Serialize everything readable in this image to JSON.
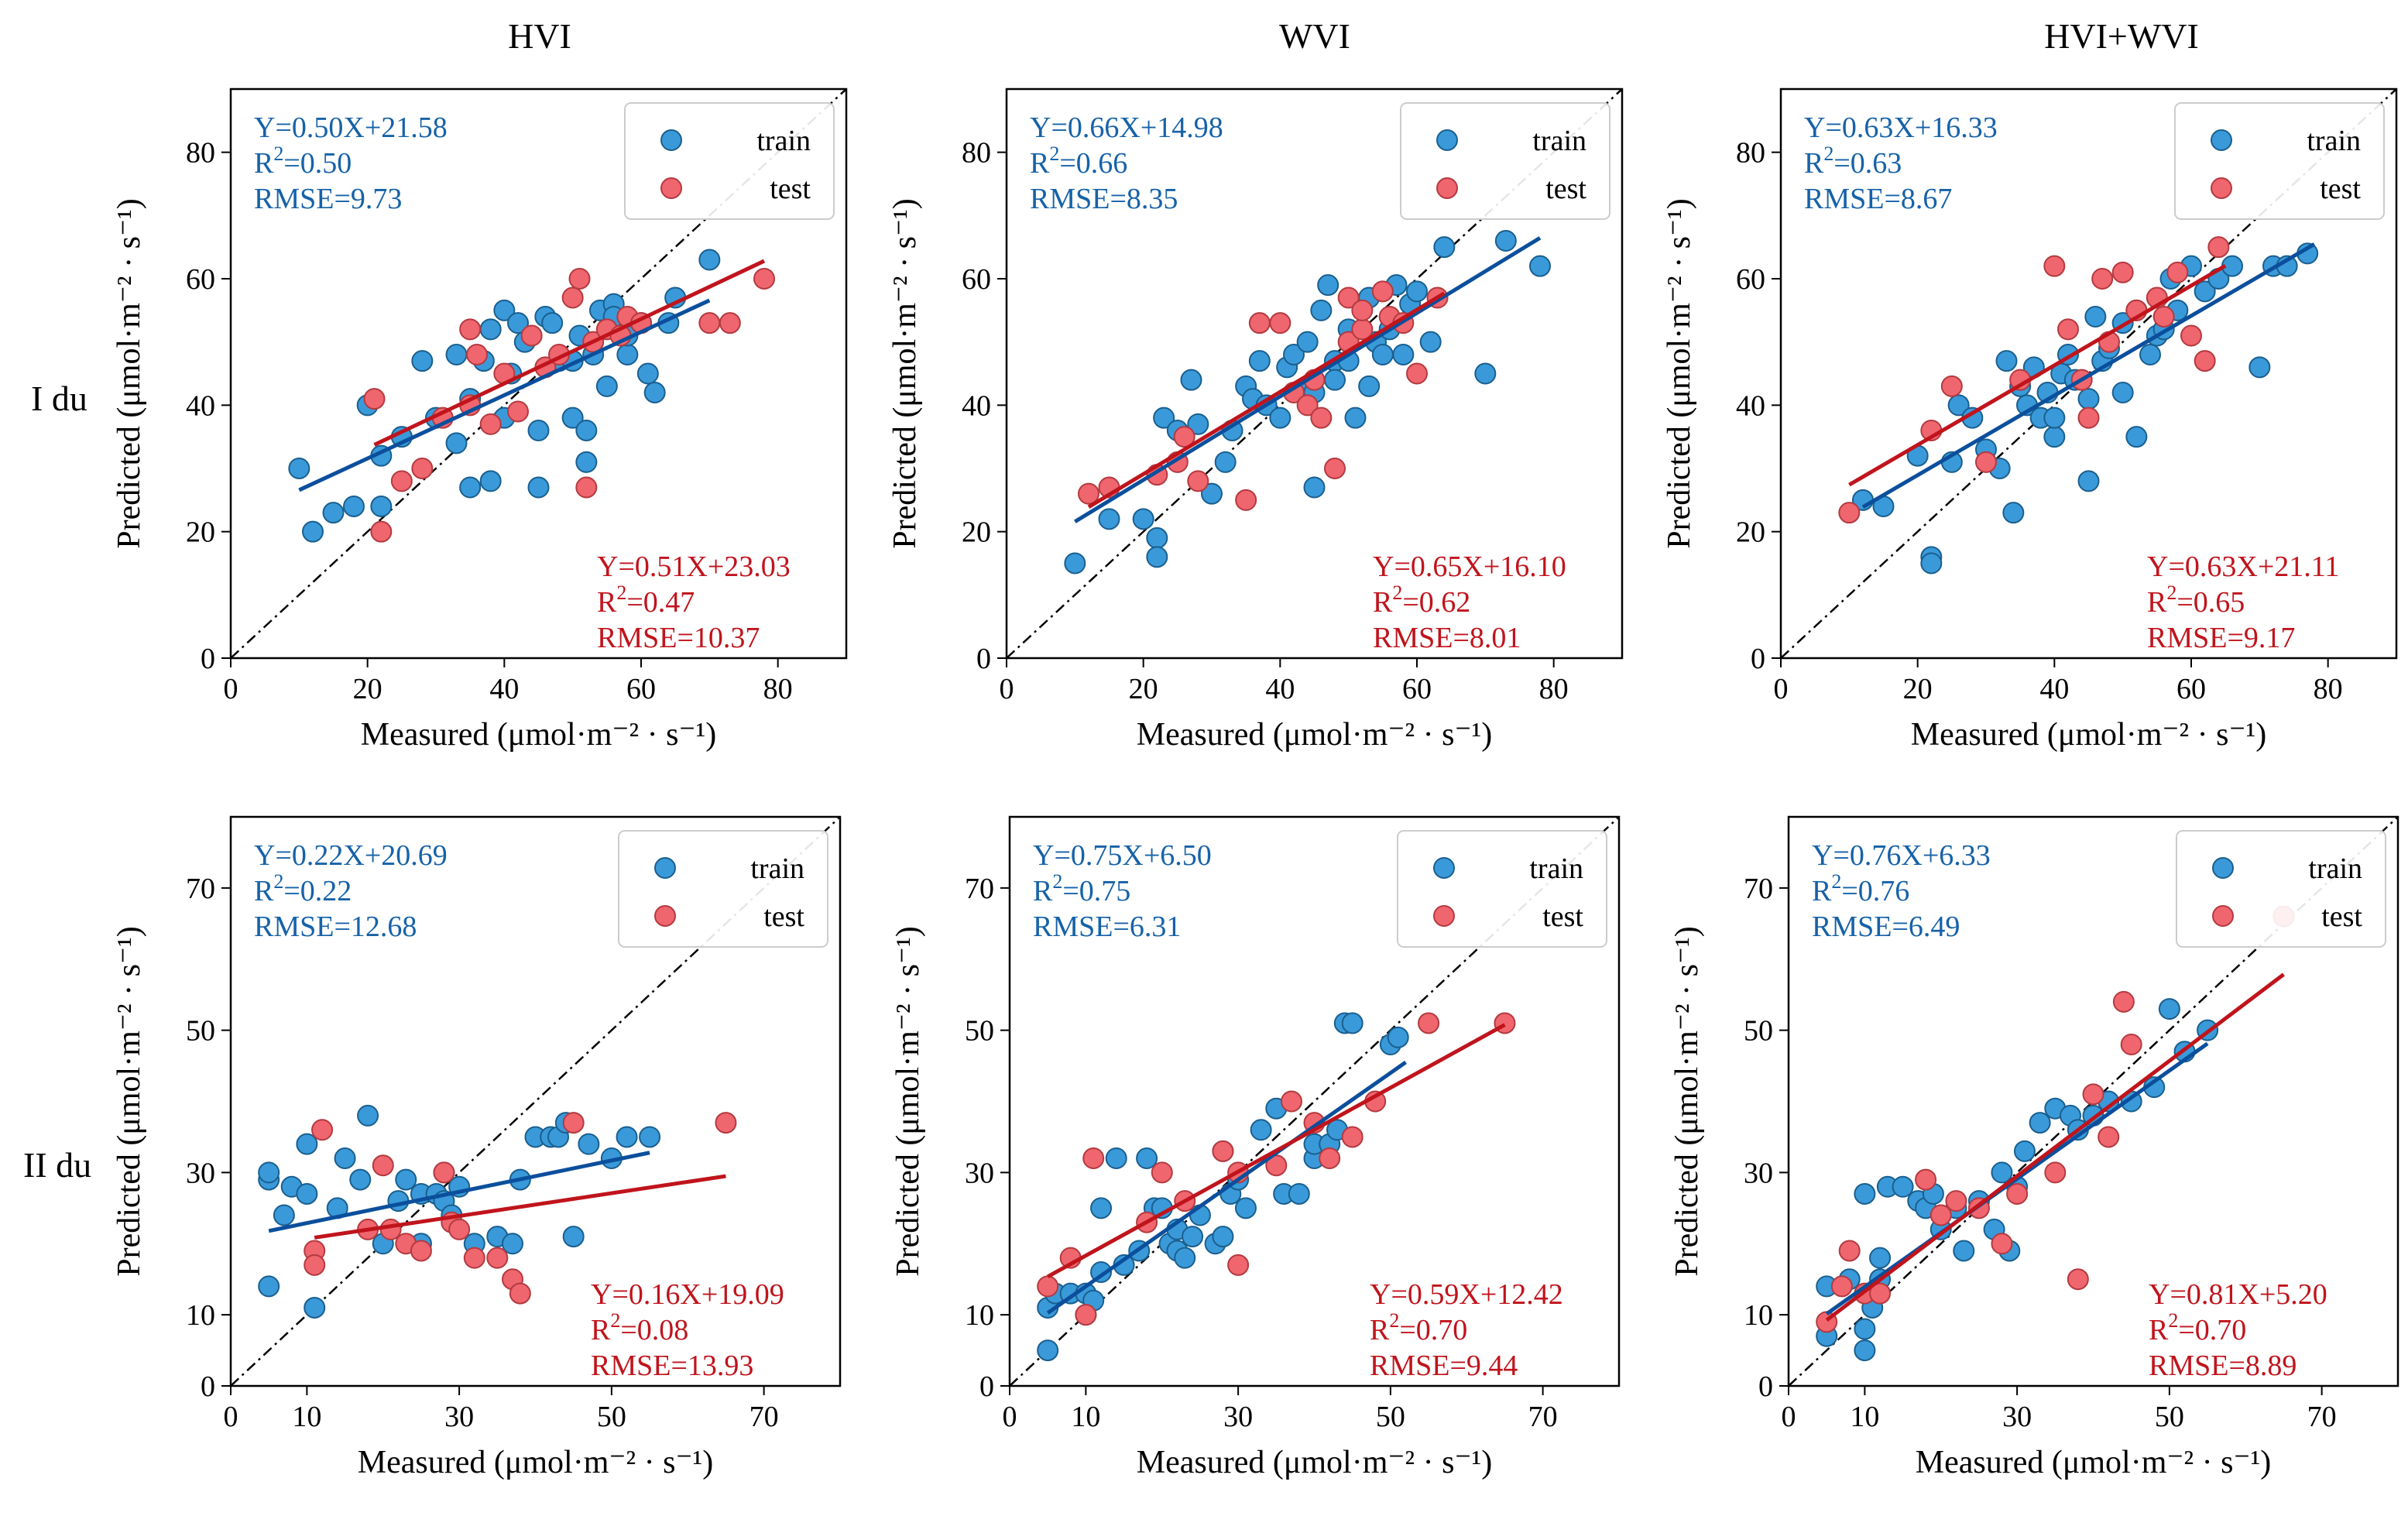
{
  "figure": {
    "row_labels": [
      "I du",
      "II du"
    ],
    "col_titles": [
      "HVI",
      "WVI",
      "HVI+WVI"
    ],
    "xlabel": "Measured (μmol·m⁻² · s⁻¹)",
    "ylabel": "Predicted (μmol·m⁻² · s⁻¹)",
    "legend": {
      "train": "train",
      "test": "test"
    },
    "colors": {
      "train_fill": "#3a9ad9",
      "train_edge": "#1a5f8f",
      "train_line": "#0b4f9c",
      "train_text": "#1662a8",
      "test_fill": "#f0666e",
      "test_edge": "#b43a40",
      "test_line": "#c0141c",
      "test_text": "#c0141c"
    }
  },
  "chart_data": [
    {
      "type": "scatter",
      "title": "HVI",
      "row": "I du",
      "xlim": [
        0,
        90
      ],
      "ylim": [
        0,
        90
      ],
      "xticks": [
        0,
        20,
        40,
        60,
        80
      ],
      "yticks": [
        0,
        20,
        40,
        60,
        80
      ],
      "train_fit": {
        "eq": "Y=0.50X+21.58",
        "r2": "0.50",
        "rmse": "RMSE=9.73",
        "slope": 0.5,
        "intercept": 21.58,
        "x_range": [
          10,
          70
        ]
      },
      "test_fit": {
        "eq": "Y=0.51X+23.03",
        "r2": "0.47",
        "rmse": "RMSE=10.37",
        "slope": 0.51,
        "intercept": 23.03,
        "x_range": [
          21,
          78
        ]
      },
      "series": [
        {
          "name": "train",
          "x": [
            10,
            12,
            15,
            18,
            20,
            22,
            22,
            25,
            28,
            30,
            33,
            33,
            35,
            35,
            37,
            38,
            38,
            40,
            40,
            41,
            42,
            43,
            45,
            45,
            46,
            47,
            48,
            50,
            50,
            51,
            52,
            52,
            53,
            54,
            55,
            56,
            56,
            58,
            58,
            60,
            61,
            62,
            64,
            65,
            70
          ],
          "y": [
            30,
            20,
            23,
            24,
            40,
            24,
            32,
            35,
            47,
            38,
            34,
            48,
            27,
            41,
            47,
            28,
            52,
            38,
            55,
            45,
            53,
            50,
            27,
            36,
            54,
            53,
            47,
            47,
            38,
            51,
            31,
            36,
            48,
            55,
            43,
            56,
            54,
            48,
            51,
            53,
            45,
            42,
            53,
            57,
            63
          ]
        },
        {
          "name": "test",
          "x": [
            21,
            22,
            25,
            28,
            31,
            35,
            35,
            36,
            38,
            40,
            42,
            44,
            46,
            48,
            50,
            51,
            52,
            53,
            55,
            57,
            58,
            60,
            70,
            73,
            78
          ],
          "y": [
            41,
            20,
            28,
            30,
            38,
            52,
            40,
            48,
            37,
            45,
            39,
            51,
            46,
            48,
            57,
            60,
            27,
            50,
            52,
            51,
            54,
            53,
            53,
            53,
            60
          ]
        }
      ]
    },
    {
      "type": "scatter",
      "title": "WVI",
      "row": "I du",
      "xlim": [
        0,
        90
      ],
      "ylim": [
        0,
        90
      ],
      "xticks": [
        0,
        20,
        40,
        60,
        80
      ],
      "yticks": [
        0,
        20,
        40,
        60,
        80
      ],
      "train_fit": {
        "eq": "Y=0.66X+14.98",
        "r2": "0.66",
        "rmse": "RMSE=8.35",
        "slope": 0.66,
        "intercept": 14.98,
        "x_range": [
          10,
          78
        ]
      },
      "test_fit": {
        "eq": "Y=0.65X+16.10",
        "r2": "0.62",
        "rmse": "RMSE=8.01",
        "slope": 0.65,
        "intercept": 16.1,
        "x_range": [
          12,
          64
        ]
      },
      "series": [
        {
          "name": "train",
          "x": [
            10,
            15,
            20,
            22,
            22,
            23,
            25,
            27,
            28,
            30,
            32,
            33,
            35,
            36,
            37,
            38,
            40,
            41,
            42,
            43,
            44,
            45,
            45,
            46,
            47,
            48,
            48,
            50,
            50,
            51,
            52,
            53,
            53,
            54,
            55,
            56,
            57,
            58,
            59,
            60,
            62,
            64,
            70,
            73,
            78
          ],
          "y": [
            15,
            22,
            22,
            19,
            16,
            38,
            36,
            44,
            37,
            26,
            31,
            36,
            43,
            41,
            47,
            40,
            38,
            46,
            48,
            42,
            50,
            27,
            42,
            55,
            59,
            47,
            44,
            52,
            47,
            38,
            56,
            43,
            57,
            50,
            48,
            52,
            59,
            48,
            56,
            58,
            50,
            65,
            45,
            66,
            62
          ]
        },
        {
          "name": "test",
          "x": [
            12,
            15,
            22,
            25,
            26,
            28,
            35,
            37,
            40,
            42,
            44,
            45,
            46,
            48,
            50,
            50,
            52,
            52,
            55,
            56,
            58,
            60,
            63
          ],
          "y": [
            26,
            27,
            29,
            31,
            35,
            28,
            25,
            53,
            53,
            42,
            40,
            44,
            38,
            30,
            57,
            50,
            52,
            55,
            58,
            54,
            53,
            45,
            57
          ]
        }
      ]
    },
    {
      "type": "scatter",
      "title": "HVI+WVI",
      "row": "I du",
      "xlim": [
        0,
        90
      ],
      "ylim": [
        0,
        90
      ],
      "xticks": [
        0,
        20,
        40,
        60,
        80
      ],
      "yticks": [
        0,
        20,
        40,
        60,
        80
      ],
      "train_fit": {
        "eq": "Y=0.63X+16.33",
        "r2": "0.63",
        "rmse": "RMSE=8.67",
        "slope": 0.63,
        "intercept": 16.33,
        "x_range": [
          12,
          78
        ]
      },
      "test_fit": {
        "eq": "Y=0.63X+21.11",
        "r2": "0.65",
        "rmse": "RMSE=9.17",
        "slope": 0.63,
        "intercept": 21.11,
        "x_range": [
          10,
          65
        ]
      },
      "series": [
        {
          "name": "train",
          "x": [
            12,
            15,
            20,
            22,
            22,
            25,
            26,
            28,
            30,
            32,
            33,
            34,
            35,
            36,
            37,
            38,
            39,
            40,
            40,
            41,
            42,
            43,
            45,
            45,
            46,
            47,
            48,
            50,
            50,
            52,
            52,
            54,
            55,
            56,
            57,
            58,
            60,
            62,
            64,
            66,
            70,
            72,
            74,
            77
          ],
          "y": [
            25,
            24,
            32,
            16,
            15,
            31,
            40,
            38,
            33,
            30,
            47,
            23,
            43,
            40,
            46,
            38,
            42,
            35,
            38,
            45,
            48,
            44,
            28,
            41,
            54,
            47,
            49,
            53,
            42,
            55,
            35,
            48,
            51,
            52,
            60,
            55,
            62,
            58,
            60,
            62,
            46,
            62,
            62,
            64
          ]
        },
        {
          "name": "test",
          "x": [
            10,
            22,
            25,
            30,
            35,
            40,
            42,
            44,
            45,
            47,
            48,
            50,
            52,
            55,
            56,
            58,
            60,
            62,
            64
          ],
          "y": [
            23,
            36,
            43,
            31,
            44,
            62,
            52,
            44,
            38,
            60,
            50,
            61,
            55,
            57,
            54,
            61,
            51,
            47,
            65
          ]
        }
      ]
    },
    {
      "type": "scatter",
      "title": "HVI",
      "row": "II du",
      "xlim": [
        0,
        80
      ],
      "ylim": [
        0,
        80
      ],
      "xticks": [
        0,
        10,
        30,
        50,
        70
      ],
      "yticks": [
        0,
        10,
        30,
        50,
        70
      ],
      "train_fit": {
        "eq": "Y=0.22X+20.69",
        "r2": "0.22",
        "rmse": "RMSE=12.68",
        "slope": 0.22,
        "intercept": 20.69,
        "x_range": [
          5,
          55
        ]
      },
      "test_fit": {
        "eq": "Y=0.16X+19.09",
        "r2": "0.08",
        "rmse": "RMSE=13.93",
        "slope": 0.16,
        "intercept": 19.09,
        "x_range": [
          11,
          65
        ]
      },
      "series": [
        {
          "name": "train",
          "x": [
            5,
            5,
            5,
            7,
            8,
            10,
            10,
            11,
            14,
            15,
            17,
            18,
            20,
            22,
            23,
            25,
            25,
            27,
            28,
            28,
            29,
            30,
            32,
            35,
            37,
            38,
            40,
            42,
            43,
            44,
            45,
            47,
            50,
            52,
            55
          ],
          "y": [
            29,
            30,
            14,
            24,
            28,
            27,
            34,
            11,
            25,
            32,
            29,
            38,
            20,
            26,
            29,
            27,
            20,
            27,
            26,
            30,
            24,
            28,
            20,
            21,
            20,
            29,
            35,
            35,
            35,
            37,
            21,
            34,
            32,
            35,
            35
          ]
        },
        {
          "name": "test",
          "x": [
            11,
            11,
            12,
            18,
            20,
            21,
            23,
            25,
            28,
            29,
            30,
            32,
            35,
            37,
            38,
            45,
            65
          ],
          "y": [
            19,
            17,
            36,
            22,
            31,
            22,
            20,
            19,
            30,
            23,
            22,
            18,
            18,
            15,
            13,
            37,
            37
          ]
        }
      ]
    },
    {
      "type": "scatter",
      "title": "WVI",
      "row": "II du",
      "xlim": [
        0,
        80
      ],
      "ylim": [
        0,
        80
      ],
      "xticks": [
        0,
        10,
        30,
        50,
        70
      ],
      "yticks": [
        0,
        10,
        30,
        50,
        70
      ],
      "train_fit": {
        "eq": "Y=0.75X+6.50",
        "r2": "0.75",
        "rmse": "RMSE=6.31",
        "slope": 0.75,
        "intercept": 6.5,
        "x_range": [
          5,
          52
        ]
      },
      "test_fit": {
        "eq": "Y=0.59X+12.42",
        "r2": "0.70",
        "rmse": "RMSE=9.44",
        "slope": 0.59,
        "intercept": 12.42,
        "x_range": [
          5,
          65
        ]
      },
      "series": [
        {
          "name": "train",
          "x": [
            5,
            5,
            6,
            8,
            10,
            10,
            11,
            12,
            12,
            14,
            15,
            17,
            18,
            19,
            20,
            21,
            22,
            22,
            23,
            24,
            25,
            27,
            28,
            28,
            29,
            30,
            31,
            33,
            35,
            36,
            38,
            40,
            40,
            42,
            43,
            44,
            45,
            50,
            51
          ],
          "y": [
            11,
            5,
            13,
            13,
            13,
            10,
            12,
            16,
            25,
            32,
            17,
            19,
            32,
            25,
            25,
            20,
            22,
            19,
            18,
            21,
            24,
            20,
            21,
            33,
            27,
            29,
            25,
            36,
            39,
            27,
            27,
            32,
            34,
            34,
            36,
            51,
            51,
            48,
            49
          ]
        },
        {
          "name": "test",
          "x": [
            5,
            8,
            10,
            11,
            18,
            20,
            23,
            28,
            30,
            30,
            35,
            37,
            40,
            42,
            45,
            48,
            55,
            65
          ],
          "y": [
            14,
            18,
            10,
            32,
            23,
            30,
            26,
            33,
            30,
            17,
            31,
            40,
            37,
            32,
            35,
            40,
            51,
            51
          ]
        }
      ]
    },
    {
      "type": "scatter",
      "title": "HVI+WVI",
      "row": "II du",
      "xlim": [
        0,
        80
      ],
      "ylim": [
        0,
        80
      ],
      "xticks": [
        0,
        10,
        30,
        50,
        70
      ],
      "yticks": [
        0,
        10,
        30,
        50,
        70
      ],
      "train_fit": {
        "eq": "Y=0.76X+6.33",
        "r2": "0.76",
        "rmse": "RMSE=6.49",
        "slope": 0.76,
        "intercept": 6.33,
        "x_range": [
          5,
          55
        ]
      },
      "test_fit": {
        "eq": "Y=0.81X+5.20",
        "r2": "0.70",
        "rmse": "RMSE=8.89",
        "slope": 0.81,
        "intercept": 5.2,
        "x_range": [
          5,
          65
        ]
      },
      "series": [
        {
          "name": "train",
          "x": [
            5,
            5,
            8,
            10,
            10,
            10,
            11,
            12,
            12,
            13,
            15,
            17,
            18,
            19,
            20,
            22,
            23,
            25,
            27,
            28,
            29,
            30,
            31,
            33,
            35,
            37,
            38,
            40,
            42,
            45,
            48,
            50,
            52,
            55
          ],
          "y": [
            14,
            7,
            15,
            8,
            5,
            27,
            11,
            15,
            18,
            28,
            28,
            26,
            25,
            27,
            22,
            25,
            19,
            26,
            22,
            30,
            19,
            28,
            33,
            37,
            39,
            38,
            36,
            38,
            40,
            40,
            42,
            53,
            47,
            50
          ]
        },
        {
          "name": "test",
          "x": [
            5,
            7,
            8,
            10,
            12,
            18,
            20,
            22,
            25,
            28,
            30,
            35,
            38,
            40,
            42,
            44,
            45,
            65
          ],
          "y": [
            9,
            14,
            19,
            13,
            13,
            29,
            24,
            26,
            25,
            20,
            27,
            30,
            15,
            41,
            35,
            54,
            48,
            66
          ]
        }
      ]
    }
  ]
}
